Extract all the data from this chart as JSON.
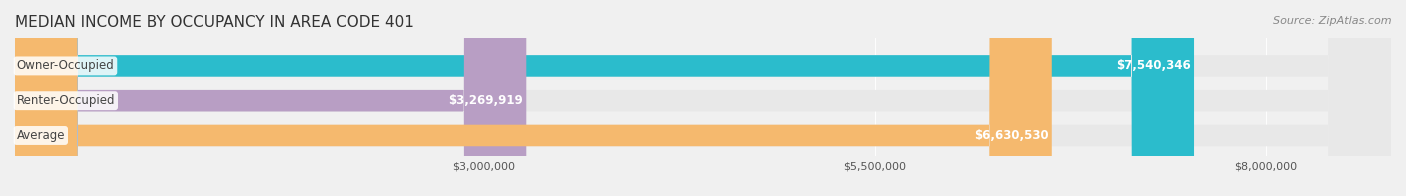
{
  "title": "MEDIAN INCOME BY OCCUPANCY IN AREA CODE 401",
  "source": "Source: ZipAtlas.com",
  "categories": [
    "Owner-Occupied",
    "Renter-Occupied",
    "Average"
  ],
  "values": [
    7540346,
    3269919,
    6630530
  ],
  "bar_colors": [
    "#2bbccc",
    "#b89ec4",
    "#f5b96e"
  ],
  "bar_labels": [
    "$7,540,346",
    "$3,269,919",
    "$6,630,530"
  ],
  "xlim": [
    0,
    8800000
  ],
  "xticks": [
    3000000,
    5500000,
    8000000
  ],
  "xtick_labels": [
    "$3,000,000",
    "$5,500,000",
    "$8,000,000"
  ],
  "background_color": "#f0f0f0",
  "bar_background_color": "#e8e8e8",
  "title_fontsize": 11,
  "label_fontsize": 8.5,
  "tick_fontsize": 8,
  "source_fontsize": 8
}
